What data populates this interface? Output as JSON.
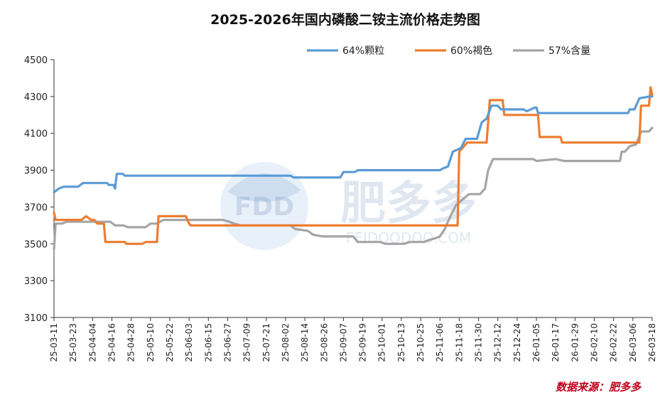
{
  "watermark": {
    "brand": "FDD",
    "name_cn": "肥多多",
    "url": "FEIDOODOO.COM"
  },
  "source_label": "数据来源：肥多多",
  "colors": {
    "series_64": "#5b9bd5",
    "series_60": "#ed7d31",
    "series_57": "#a5a5a5"
  },
  "chart_data": {
    "type": "line",
    "title": "2025-2026年国内磷酸二铵主流价格走势图",
    "xlabel": "",
    "ylabel": "",
    "ylim": [
      3100,
      4500
    ],
    "yticks": [
      3100,
      3300,
      3500,
      3700,
      3900,
      4100,
      4300,
      4500
    ],
    "x_tick_labels": [
      "25-03-11",
      "25-03-23",
      "25-04-04",
      "25-04-16",
      "25-04-28",
      "25-05-10",
      "25-05-22",
      "25-06-03",
      "25-06-15",
      "25-06-27",
      "25-07-09",
      "25-07-21",
      "25-08-02",
      "25-08-14",
      "25-08-26",
      "25-09-07",
      "25-09-19",
      "25-10-01",
      "25-10-13",
      "25-10-25",
      "25-11-06",
      "25-11-18",
      "25-11-30",
      "25-12-12",
      "25-12-24",
      "26-01-05",
      "26-01-17",
      "26-01-29",
      "26-02-10",
      "26-02-22",
      "26-03-06",
      "26-03-18"
    ],
    "x_start": "2025-03-11",
    "x_end": "2026-03-18",
    "grid": false,
    "legend_position": "top-right",
    "series": [
      {
        "name": "64%颗粒",
        "points": [
          [
            "2025-03-11",
            3780
          ],
          [
            "2025-03-14",
            3800
          ],
          [
            "2025-03-17",
            3810
          ],
          [
            "2025-03-26",
            3810
          ],
          [
            "2025-03-29",
            3830
          ],
          [
            "2025-04-13",
            3830
          ],
          [
            "2025-04-14",
            3820
          ],
          [
            "2025-04-17",
            3820
          ],
          [
            "2025-04-18",
            3800
          ],
          [
            "2025-04-19",
            3880
          ],
          [
            "2025-04-23",
            3880
          ],
          [
            "2025-04-24",
            3870
          ],
          [
            "2025-08-05",
            3870
          ],
          [
            "2025-08-07",
            3860
          ],
          [
            "2025-09-05",
            3860
          ],
          [
            "2025-09-07",
            3890
          ],
          [
            "2025-09-14",
            3890
          ],
          [
            "2025-09-16",
            3900
          ],
          [
            "2025-11-06",
            3900
          ],
          [
            "2025-11-08",
            3910
          ],
          [
            "2025-11-11",
            3920
          ],
          [
            "2025-11-14",
            4000
          ],
          [
            "2025-11-19",
            4020
          ],
          [
            "2025-11-22",
            4070
          ],
          [
            "2025-11-29",
            4070
          ],
          [
            "2025-12-02",
            4160
          ],
          [
            "2025-12-05",
            4180
          ],
          [
            "2025-12-08",
            4250
          ],
          [
            "2025-12-12",
            4250
          ],
          [
            "2025-12-14",
            4230
          ],
          [
            "2025-12-28",
            4230
          ],
          [
            "2025-12-30",
            4220
          ],
          [
            "2026-01-04",
            4240
          ],
          [
            "2026-01-05",
            4240
          ],
          [
            "2026-01-06",
            4210
          ],
          [
            "2026-03-03",
            4210
          ],
          [
            "2026-03-04",
            4230
          ],
          [
            "2026-03-07",
            4230
          ],
          [
            "2026-03-10",
            4290
          ],
          [
            "2026-03-16",
            4300
          ],
          [
            "2026-03-18",
            4300
          ]
        ]
      },
      {
        "name": "60%褐色",
        "points": [
          [
            "2025-03-11",
            3670
          ],
          [
            "2025-03-12",
            3630
          ],
          [
            "2025-03-28",
            3630
          ],
          [
            "2025-03-31",
            3650
          ],
          [
            "2025-04-03",
            3630
          ],
          [
            "2025-04-05",
            3630
          ],
          [
            "2025-04-07",
            3610
          ],
          [
            "2025-04-11",
            3610
          ],
          [
            "2025-04-12",
            3510
          ],
          [
            "2025-04-24",
            3510
          ],
          [
            "2025-04-25",
            3500
          ],
          [
            "2025-05-05",
            3500
          ],
          [
            "2025-05-07",
            3510
          ],
          [
            "2025-05-10",
            3510
          ],
          [
            "2025-05-14",
            3510
          ],
          [
            "2025-05-15",
            3650
          ],
          [
            "2025-06-01",
            3650
          ],
          [
            "2025-06-03",
            3610
          ],
          [
            "2025-06-04",
            3600
          ],
          [
            "2025-11-17",
            3600
          ],
          [
            "2025-11-18",
            4000
          ],
          [
            "2025-11-23",
            4050
          ],
          [
            "2025-12-05",
            4050
          ],
          [
            "2025-12-07",
            4280
          ],
          [
            "2025-12-15",
            4280
          ],
          [
            "2025-12-16",
            4200
          ],
          [
            "2026-01-06",
            4200
          ],
          [
            "2026-01-07",
            4080
          ],
          [
            "2026-01-20",
            4080
          ],
          [
            "2026-01-21",
            4050
          ],
          [
            "2026-03-10",
            4050
          ],
          [
            "2026-03-11",
            4250
          ],
          [
            "2026-03-16",
            4250
          ],
          [
            "2026-03-17",
            4350
          ],
          [
            "2026-03-18",
            4310
          ]
        ]
      },
      {
        "name": "57%含量",
        "points": [
          [
            "2025-03-11",
            3470
          ],
          [
            "2025-03-12",
            3610
          ],
          [
            "2025-03-16",
            3610
          ],
          [
            "2025-03-19",
            3620
          ],
          [
            "2025-04-15",
            3620
          ],
          [
            "2025-04-18",
            3600
          ],
          [
            "2025-04-23",
            3600
          ],
          [
            "2025-04-26",
            3590
          ],
          [
            "2025-05-07",
            3590
          ],
          [
            "2025-05-10",
            3610
          ],
          [
            "2025-05-14",
            3610
          ],
          [
            "2025-05-18",
            3630
          ],
          [
            "2025-06-24",
            3630
          ],
          [
            "2025-06-28",
            3620
          ],
          [
            "2025-07-01",
            3610
          ],
          [
            "2025-07-05",
            3600
          ],
          [
            "2025-08-05",
            3600
          ],
          [
            "2025-08-08",
            3580
          ],
          [
            "2025-08-16",
            3570
          ],
          [
            "2025-08-19",
            3550
          ],
          [
            "2025-08-25",
            3540
          ],
          [
            "2025-09-13",
            3540
          ],
          [
            "2025-09-16",
            3510
          ],
          [
            "2025-09-30",
            3510
          ],
          [
            "2025-10-03",
            3500
          ],
          [
            "2025-10-15",
            3500
          ],
          [
            "2025-10-18",
            3510
          ],
          [
            "2025-10-27",
            3510
          ],
          [
            "2025-10-30",
            3520
          ],
          [
            "2025-11-03",
            3530
          ],
          [
            "2025-11-06",
            3540
          ],
          [
            "2025-11-09",
            3580
          ],
          [
            "2025-11-12",
            3640
          ],
          [
            "2025-11-16",
            3710
          ],
          [
            "2025-11-20",
            3740
          ],
          [
            "2025-11-24",
            3770
          ],
          [
            "2025-12-01",
            3770
          ],
          [
            "2025-12-04",
            3800
          ],
          [
            "2025-12-06",
            3900
          ],
          [
            "2025-12-09",
            3960
          ],
          [
            "2026-01-03",
            3960
          ],
          [
            "2026-01-05",
            3950
          ],
          [
            "2026-01-17",
            3960
          ],
          [
            "2026-01-22",
            3950
          ],
          [
            "2026-02-22",
            3950
          ],
          [
            "2026-02-26",
            3950
          ],
          [
            "2026-02-27",
            4000
          ],
          [
            "2026-03-01",
            4000
          ],
          [
            "2026-03-04",
            4030
          ],
          [
            "2026-03-08",
            4040
          ],
          [
            "2026-03-11",
            4110
          ],
          [
            "2026-03-16",
            4110
          ],
          [
            "2026-03-18",
            4130
          ]
        ]
      }
    ]
  }
}
